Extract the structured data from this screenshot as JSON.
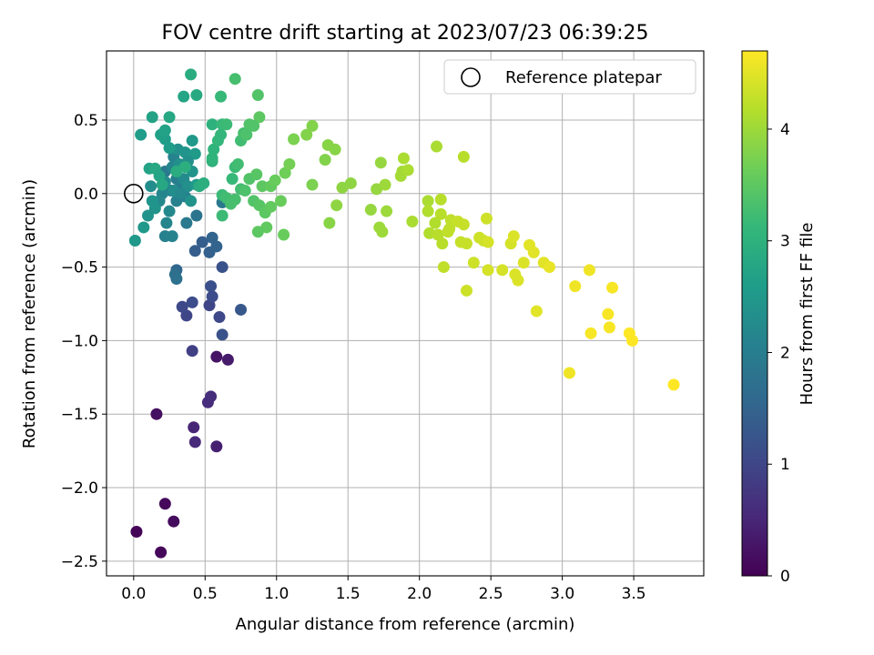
{
  "chart_data": {
    "type": "scatter",
    "title": "FOV centre drift starting at 2023/07/23 06:39:25",
    "xlabel": "Angular distance from reference (arcmin)",
    "ylabel": "Rotation from reference (arcmin)",
    "xlim": [
      -0.19,
      3.99
    ],
    "ylim": [
      -2.6,
      0.97
    ],
    "xticks": [
      0.0,
      0.5,
      1.0,
      1.5,
      2.0,
      2.5,
      3.0,
      3.5
    ],
    "xtick_labels": [
      "0.0",
      "0.5",
      "1.0",
      "1.5",
      "2.0",
      "2.5",
      "3.0",
      "3.5"
    ],
    "yticks": [
      -2.5,
      -2.0,
      -1.5,
      -1.0,
      -0.5,
      0.0,
      0.5
    ],
    "ytick_labels": [
      "−2.5",
      "−2.0",
      "−1.5",
      "−1.0",
      "−0.5",
      "0.0",
      "0.5"
    ],
    "grid": true,
    "legend": {
      "placement": "upper right",
      "entries": [
        {
          "label": "Reference platepar",
          "marker": "open-circle"
        }
      ]
    },
    "reference_point": {
      "x": 0.0,
      "y": 0.0
    },
    "colorbar": {
      "label": "Hours from first FF file",
      "colormap": "viridis",
      "range": [
        0,
        4.7
      ],
      "ticks": [
        0,
        1,
        2,
        3,
        4
      ],
      "tick_labels": [
        "0",
        "1",
        "2",
        "3",
        "4"
      ]
    },
    "points": [
      {
        "x": 0.02,
        "y": -2.3,
        "c": 0.05
      },
      {
        "x": 0.19,
        "y": -2.44,
        "c": 0.08
      },
      {
        "x": 0.22,
        "y": -2.11,
        "c": 0.1
      },
      {
        "x": 0.28,
        "y": -2.23,
        "c": 0.15
      },
      {
        "x": 0.16,
        "y": -1.5,
        "c": 0.2
      },
      {
        "x": 0.58,
        "y": -1.11,
        "c": 0.25
      },
      {
        "x": 0.66,
        "y": -1.13,
        "c": 0.35
      },
      {
        "x": 0.58,
        "y": -1.72,
        "c": 0.4
      },
      {
        "x": 0.42,
        "y": -1.59,
        "c": 0.5
      },
      {
        "x": 0.43,
        "y": -1.69,
        "c": 0.55
      },
      {
        "x": 0.52,
        "y": -1.42,
        "c": 0.6
      },
      {
        "x": 0.54,
        "y": -1.38,
        "c": 0.62
      },
      {
        "x": 0.41,
        "y": -1.07,
        "c": 0.9
      },
      {
        "x": 0.37,
        "y": -0.83,
        "c": 1.0
      },
      {
        "x": 0.34,
        "y": -0.77,
        "c": 1.05
      },
      {
        "x": 0.41,
        "y": -0.74,
        "c": 1.1
      },
      {
        "x": 0.53,
        "y": -0.76,
        "c": 1.0
      },
      {
        "x": 0.55,
        "y": -0.7,
        "c": 1.1
      },
      {
        "x": 0.54,
        "y": -0.63,
        "c": 1.15
      },
      {
        "x": 0.6,
        "y": -0.84,
        "c": 1.05
      },
      {
        "x": 0.62,
        "y": -0.96,
        "c": 1.2
      },
      {
        "x": 0.75,
        "y": -0.79,
        "c": 1.3
      },
      {
        "x": 0.62,
        "y": -0.5,
        "c": 1.2
      },
      {
        "x": 0.43,
        "y": -0.39,
        "c": 1.4
      },
      {
        "x": 0.48,
        "y": -0.33,
        "c": 1.4
      },
      {
        "x": 0.53,
        "y": -0.4,
        "c": 1.45
      },
      {
        "x": 0.55,
        "y": -0.3,
        "c": 1.5
      },
      {
        "x": 0.58,
        "y": -0.36,
        "c": 1.5
      },
      {
        "x": 0.3,
        "y": -0.52,
        "c": 1.55
      },
      {
        "x": 0.29,
        "y": -0.55,
        "c": 1.7
      },
      {
        "x": 0.3,
        "y": -0.58,
        "c": 1.75
      },
      {
        "x": 0.44,
        "y": -0.15,
        "c": 1.8
      },
      {
        "x": 0.37,
        "y": -0.2,
        "c": 1.9
      },
      {
        "x": 0.62,
        "y": -0.06,
        "c": 1.9
      },
      {
        "x": 0.22,
        "y": -0.29,
        "c": 2.05
      },
      {
        "x": 0.27,
        "y": -0.29,
        "c": 2.1
      },
      {
        "x": 0.23,
        "y": -0.2,
        "c": 2.15
      },
      {
        "x": 0.25,
        "y": -0.12,
        "c": 2.2
      },
      {
        "x": 0.28,
        "y": 0.25,
        "c": 2.1
      },
      {
        "x": 0.22,
        "y": 0.15,
        "c": 1.9
      },
      {
        "x": 0.3,
        "y": 0.1,
        "c": 2.0
      },
      {
        "x": 0.33,
        "y": 0.05,
        "c": 2.0
      },
      {
        "x": 0.36,
        "y": -0.02,
        "c": 2.05
      },
      {
        "x": 0.3,
        "y": -0.05,
        "c": 2.05
      },
      {
        "x": 0.26,
        "y": 0.02,
        "c": 2.1
      },
      {
        "x": 0.2,
        "y": 0.0,
        "c": 2.15
      },
      {
        "x": 0.18,
        "y": -0.05,
        "c": 2.2
      },
      {
        "x": 0.22,
        "y": 0.08,
        "c": 2.25
      },
      {
        "x": 0.28,
        "y": 0.02,
        "c": 2.3
      },
      {
        "x": 0.35,
        "y": 0.1,
        "c": 2.25
      },
      {
        "x": 0.38,
        "y": 0.05,
        "c": 2.35
      },
      {
        "x": 0.4,
        "y": -0.05,
        "c": 2.4
      },
      {
        "x": 0.15,
        "y": -0.1,
        "c": 2.4
      },
      {
        "x": 0.13,
        "y": -0.05,
        "c": 2.45
      },
      {
        "x": 0.12,
        "y": 0.05,
        "c": 2.3
      },
      {
        "x": 0.1,
        "y": -0.15,
        "c": 2.4
      },
      {
        "x": 0.07,
        "y": -0.23,
        "c": 2.5
      },
      {
        "x": 0.01,
        "y": -0.32,
        "c": 2.5
      },
      {
        "x": 0.33,
        "y": 0.0,
        "c": 2.2
      },
      {
        "x": 0.27,
        "y": 0.18,
        "c": 2.15
      },
      {
        "x": 0.32,
        "y": 0.2,
        "c": 2.35
      },
      {
        "x": 0.41,
        "y": 0.15,
        "c": 2.4
      },
      {
        "x": 0.44,
        "y": 0.06,
        "c": 2.55
      },
      {
        "x": 0.31,
        "y": 0.3,
        "c": 2.35
      },
      {
        "x": 0.36,
        "y": 0.28,
        "c": 2.45
      },
      {
        "x": 0.41,
        "y": 0.36,
        "c": 2.5
      },
      {
        "x": 0.43,
        "y": 0.27,
        "c": 2.55
      },
      {
        "x": 0.38,
        "y": 0.22,
        "c": 2.35
      },
      {
        "x": 0.25,
        "y": 0.31,
        "c": 2.6
      },
      {
        "x": 0.22,
        "y": 0.37,
        "c": 2.6
      },
      {
        "x": 0.19,
        "y": 0.4,
        "c": 2.65
      },
      {
        "x": 0.22,
        "y": 0.43,
        "c": 2.7
      },
      {
        "x": 0.05,
        "y": 0.4,
        "c": 2.6
      },
      {
        "x": 0.13,
        "y": 0.52,
        "c": 2.7
      },
      {
        "x": 0.25,
        "y": 0.52,
        "c": 2.8
      },
      {
        "x": 0.35,
        "y": 0.66,
        "c": 2.75
      },
      {
        "x": 0.44,
        "y": 0.67,
        "c": 2.85
      },
      {
        "x": 0.4,
        "y": 0.81,
        "c": 2.9
      },
      {
        "x": 0.11,
        "y": 0.17,
        "c": 2.7
      },
      {
        "x": 0.15,
        "y": 0.17,
        "c": 2.8
      },
      {
        "x": 0.18,
        "y": 0.12,
        "c": 2.75
      },
      {
        "x": 0.2,
        "y": 0.06,
        "c": 2.8
      },
      {
        "x": 0.3,
        "y": 0.15,
        "c": 2.9
      },
      {
        "x": 0.36,
        "y": 0.18,
        "c": 2.95
      },
      {
        "x": 0.46,
        "y": 0.05,
        "c": 2.9
      },
      {
        "x": 0.49,
        "y": 0.07,
        "c": 2.95
      },
      {
        "x": 0.55,
        "y": 0.22,
        "c": 3.0
      },
      {
        "x": 0.55,
        "y": 0.24,
        "c": 3.05
      },
      {
        "x": 0.56,
        "y": 0.3,
        "c": 3.05
      },
      {
        "x": 0.55,
        "y": 0.47,
        "c": 3.0
      },
      {
        "x": 0.59,
        "y": 0.36,
        "c": 3.1
      },
      {
        "x": 0.61,
        "y": 0.4,
        "c": 3.1
      },
      {
        "x": 0.62,
        "y": 0.47,
        "c": 3.15
      },
      {
        "x": 0.65,
        "y": 0.47,
        "c": 3.2
      },
      {
        "x": 0.61,
        "y": 0.66,
        "c": 3.15
      },
      {
        "x": 0.71,
        "y": 0.78,
        "c": 3.3
      },
      {
        "x": 0.87,
        "y": 0.67,
        "c": 3.4
      },
      {
        "x": 0.88,
        "y": 0.52,
        "c": 3.5
      },
      {
        "x": 0.75,
        "y": 0.36,
        "c": 3.25
      },
      {
        "x": 0.77,
        "y": 0.41,
        "c": 3.3
      },
      {
        "x": 0.81,
        "y": 0.47,
        "c": 3.4
      },
      {
        "x": 0.84,
        "y": 0.46,
        "c": 3.4
      },
      {
        "x": 0.79,
        "y": 0.4,
        "c": 3.35
      },
      {
        "x": 0.69,
        "y": 0.1,
        "c": 3.15
      },
      {
        "x": 0.71,
        "y": 0.18,
        "c": 3.2
      },
      {
        "x": 0.73,
        "y": 0.2,
        "c": 3.25
      },
      {
        "x": 0.75,
        "y": 0.03,
        "c": 3.25
      },
      {
        "x": 0.62,
        "y": -0.01,
        "c": 3.2
      },
      {
        "x": 0.65,
        "y": -0.03,
        "c": 3.25
      },
      {
        "x": 0.68,
        "y": -0.07,
        "c": 3.3
      },
      {
        "x": 0.71,
        "y": -0.04,
        "c": 3.3
      },
      {
        "x": 0.78,
        "y": 0.02,
        "c": 3.35
      },
      {
        "x": 0.81,
        "y": 0.1,
        "c": 3.4
      },
      {
        "x": 0.84,
        "y": -0.05,
        "c": 3.4
      },
      {
        "x": 0.86,
        "y": 0.13,
        "c": 3.45
      },
      {
        "x": 0.88,
        "y": -0.08,
        "c": 3.45
      },
      {
        "x": 0.9,
        "y": 0.05,
        "c": 3.5
      },
      {
        "x": 0.92,
        "y": -0.13,
        "c": 3.5
      },
      {
        "x": 0.93,
        "y": -0.23,
        "c": 3.55
      },
      {
        "x": 0.96,
        "y": 0.05,
        "c": 3.55
      },
      {
        "x": 0.99,
        "y": 0.09,
        "c": 3.6
      },
      {
        "x": 1.03,
        "y": -0.05,
        "c": 3.6
      },
      {
        "x": 0.87,
        "y": -0.26,
        "c": 3.5
      },
      {
        "x": 1.05,
        "y": -0.28,
        "c": 3.6
      },
      {
        "x": 0.62,
        "y": -0.15,
        "c": 3.2
      },
      {
        "x": 0.96,
        "y": -0.09,
        "c": 3.55
      },
      {
        "x": 1.06,
        "y": 0.14,
        "c": 3.65
      },
      {
        "x": 1.09,
        "y": 0.2,
        "c": 3.7
      },
      {
        "x": 1.12,
        "y": 0.37,
        "c": 3.75
      },
      {
        "x": 1.21,
        "y": 0.4,
        "c": 3.8
      },
      {
        "x": 1.25,
        "y": 0.46,
        "c": 3.8
      },
      {
        "x": 1.25,
        "y": 0.06,
        "c": 3.75
      },
      {
        "x": 1.34,
        "y": 0.23,
        "c": 3.8
      },
      {
        "x": 1.36,
        "y": 0.33,
        "c": 3.85
      },
      {
        "x": 1.41,
        "y": 0.3,
        "c": 3.85
      },
      {
        "x": 1.37,
        "y": -0.2,
        "c": 3.85
      },
      {
        "x": 1.42,
        "y": -0.08,
        "c": 3.9
      },
      {
        "x": 1.46,
        "y": 0.04,
        "c": 3.9
      },
      {
        "x": 1.52,
        "y": 0.07,
        "c": 3.9
      },
      {
        "x": 1.66,
        "y": -0.11,
        "c": 3.95
      },
      {
        "x": 1.7,
        "y": 0.03,
        "c": 3.95
      },
      {
        "x": 1.72,
        "y": -0.23,
        "c": 4.0
      },
      {
        "x": 1.74,
        "y": -0.26,
        "c": 4.0
      },
      {
        "x": 1.73,
        "y": 0.21,
        "c": 3.95
      },
      {
        "x": 1.76,
        "y": 0.06,
        "c": 4.0
      },
      {
        "x": 1.77,
        "y": -0.12,
        "c": 4.0
      },
      {
        "x": 1.87,
        "y": 0.12,
        "c": 4.05
      },
      {
        "x": 1.88,
        "y": 0.15,
        "c": 4.05
      },
      {
        "x": 1.89,
        "y": 0.24,
        "c": 4.1
      },
      {
        "x": 1.92,
        "y": 0.16,
        "c": 4.1
      },
      {
        "x": 1.95,
        "y": -0.19,
        "c": 4.1
      },
      {
        "x": 2.06,
        "y": -0.05,
        "c": 4.1
      },
      {
        "x": 2.06,
        "y": -0.12,
        "c": 4.15
      },
      {
        "x": 2.07,
        "y": -0.27,
        "c": 4.15
      },
      {
        "x": 2.12,
        "y": 0.32,
        "c": 4.1
      },
      {
        "x": 2.11,
        "y": -0.2,
        "c": 4.15
      },
      {
        "x": 2.13,
        "y": -0.28,
        "c": 4.2
      },
      {
        "x": 2.15,
        "y": -0.14,
        "c": 4.2
      },
      {
        "x": 2.15,
        "y": -0.04,
        "c": 4.2
      },
      {
        "x": 2.16,
        "y": -0.34,
        "c": 4.2
      },
      {
        "x": 2.17,
        "y": -0.5,
        "c": 4.25
      },
      {
        "x": 2.2,
        "y": -0.26,
        "c": 4.25
      },
      {
        "x": 2.22,
        "y": -0.18,
        "c": 4.25
      },
      {
        "x": 2.21,
        "y": -0.24,
        "c": 4.25
      },
      {
        "x": 2.27,
        "y": -0.19,
        "c": 4.3
      },
      {
        "x": 2.29,
        "y": -0.33,
        "c": 4.3
      },
      {
        "x": 2.31,
        "y": -0.21,
        "c": 4.3
      },
      {
        "x": 2.31,
        "y": 0.25,
        "c": 4.2
      },
      {
        "x": 2.33,
        "y": -0.34,
        "c": 4.3
      },
      {
        "x": 2.33,
        "y": -0.66,
        "c": 4.35
      },
      {
        "x": 2.38,
        "y": -0.47,
        "c": 4.35
      },
      {
        "x": 2.42,
        "y": -0.3,
        "c": 4.35
      },
      {
        "x": 2.45,
        "y": -0.32,
        "c": 4.35
      },
      {
        "x": 2.48,
        "y": -0.33,
        "c": 4.4
      },
      {
        "x": 2.47,
        "y": -0.17,
        "c": 4.35
      },
      {
        "x": 2.48,
        "y": -0.52,
        "c": 4.4
      },
      {
        "x": 2.58,
        "y": -0.52,
        "c": 4.4
      },
      {
        "x": 2.64,
        "y": -0.34,
        "c": 4.4
      },
      {
        "x": 2.66,
        "y": -0.29,
        "c": 4.45
      },
      {
        "x": 2.67,
        "y": -0.55,
        "c": 4.45
      },
      {
        "x": 2.69,
        "y": -0.59,
        "c": 4.45
      },
      {
        "x": 2.73,
        "y": -0.47,
        "c": 4.45
      },
      {
        "x": 2.77,
        "y": -0.35,
        "c": 4.5
      },
      {
        "x": 2.8,
        "y": -0.4,
        "c": 4.5
      },
      {
        "x": 2.82,
        "y": -0.8,
        "c": 4.5
      },
      {
        "x": 2.87,
        "y": -0.47,
        "c": 4.5
      },
      {
        "x": 2.91,
        "y": -0.5,
        "c": 4.55
      },
      {
        "x": 3.05,
        "y": -1.22,
        "c": 4.6
      },
      {
        "x": 3.09,
        "y": -0.63,
        "c": 4.6
      },
      {
        "x": 3.19,
        "y": -0.52,
        "c": 4.6
      },
      {
        "x": 3.2,
        "y": -0.95,
        "c": 4.65
      },
      {
        "x": 3.32,
        "y": -0.82,
        "c": 4.65
      },
      {
        "x": 3.33,
        "y": -0.91,
        "c": 4.65
      },
      {
        "x": 3.35,
        "y": -0.64,
        "c": 4.65
      },
      {
        "x": 3.47,
        "y": -0.95,
        "c": 4.7
      },
      {
        "x": 3.49,
        "y": -1.0,
        "c": 4.7
      },
      {
        "x": 3.78,
        "y": -1.3,
        "c": 4.7
      }
    ]
  },
  "colors": {
    "grid": "#b0b0b0",
    "reference_marker": "#000000",
    "viridis_stops": [
      "#440154",
      "#482878",
      "#3e4989",
      "#31688e",
      "#26828e",
      "#1f9e89",
      "#35b779",
      "#6ece58",
      "#b5de2b",
      "#fde725"
    ]
  }
}
